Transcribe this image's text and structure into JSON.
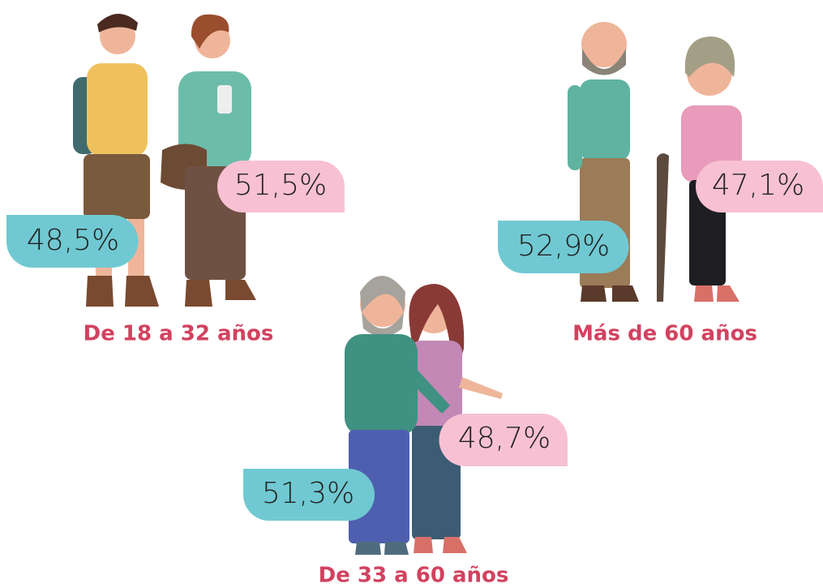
{
  "groups": [
    {
      "label": "De 18 a 32 años",
      "male": "48,5%",
      "female": "51,5%"
    },
    {
      "label": "Más de 60 años",
      "male": "52,9%",
      "female": "47,1%"
    },
    {
      "label": "De 33 a 60 años",
      "male": "51,3%",
      "female": "48,7%"
    }
  ]
}
